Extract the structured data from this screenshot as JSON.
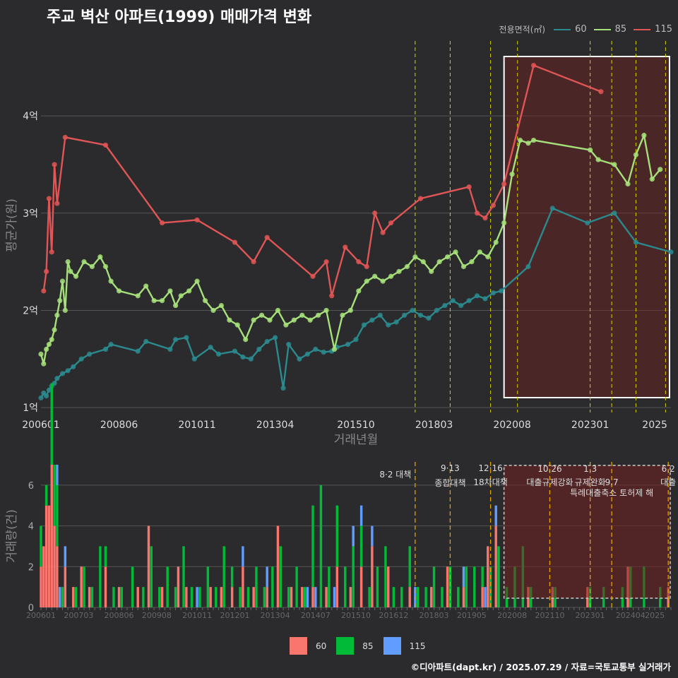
{
  "title": "주교 벽산 아파트(1999) 매매가격 변화",
  "footer": "©디아파트(dapt.kr) / 2025.07.29 / 자료=국토교통부 실거래가",
  "legend_top": {
    "title": "전용면적(㎡)",
    "items": [
      {
        "label": "60",
        "color": "#2a8a8e"
      },
      {
        "label": "85",
        "color": "#a6e07a"
      },
      {
        "label": "115",
        "color": "#e05555"
      }
    ]
  },
  "legend_bottom": {
    "items": [
      {
        "label": "60",
        "color": "#f8766d"
      },
      {
        "label": "85",
        "color": "#00ba38"
      },
      {
        "label": "115",
        "color": "#619cff"
      }
    ]
  },
  "chart_data": [
    {
      "type": "line",
      "title": "",
      "xlabel": "거래년월",
      "ylabel": "평균가(원)",
      "xlim": [
        "200601",
        "202507"
      ],
      "ylim": [
        0.95,
        4.8
      ],
      "x_ticks": [
        "200601",
        "200806",
        "201011",
        "201304",
        "201510",
        "201803",
        "202008",
        "202301",
        "2025"
      ],
      "y_ticks": [
        {
          "value": 1,
          "label": "1억"
        },
        {
          "value": 2,
          "label": "2억"
        },
        {
          "value": 3,
          "label": "3억"
        },
        {
          "value": 4,
          "label": "4억"
        }
      ],
      "grid": true,
      "legend_placement": "top-right",
      "highlight_region": {
        "from": "202005",
        "to": "202507"
      },
      "policy_lines": [
        "201708",
        "201809",
        "201912",
        "202010",
        "202301",
        "202309",
        "202406",
        "202505"
      ],
      "series": [
        {
          "name": "60",
          "color": "#2a8a8e",
          "x": [
            "200601",
            "200602",
            "200603",
            "200604",
            "200605",
            "200606",
            "200607",
            "200609",
            "200611",
            "200701",
            "200704",
            "200707",
            "200801",
            "200803",
            "200901",
            "200904",
            "201001",
            "201003",
            "201007",
            "201010",
            "201104",
            "201107",
            "201201",
            "201204",
            "201207",
            "201210",
            "201301",
            "201304",
            "201307",
            "201309",
            "201401",
            "201404",
            "201407",
            "201410",
            "201501",
            "201503",
            "201507",
            "201510",
            "201601",
            "201604",
            "201607",
            "201610",
            "201701",
            "201704",
            "201707",
            "201710",
            "201801",
            "201804",
            "201807",
            "201810",
            "201901",
            "201904",
            "201907",
            "201910",
            "202001",
            "202004",
            "202102",
            "202111",
            "202212",
            "202310",
            "202406",
            "202507"
          ],
          "y": [
            1.1,
            1.15,
            1.12,
            1.18,
            1.22,
            1.25,
            1.3,
            1.35,
            1.38,
            1.42,
            1.5,
            1.55,
            1.6,
            1.65,
            1.58,
            1.68,
            1.6,
            1.7,
            1.72,
            1.5,
            1.62,
            1.55,
            1.58,
            1.52,
            1.5,
            1.6,
            1.68,
            1.72,
            1.2,
            1.65,
            1.5,
            1.55,
            1.6,
            1.57,
            1.58,
            1.62,
            1.65,
            1.7,
            1.85,
            1.9,
            1.95,
            1.85,
            1.88,
            1.95,
            2.0,
            1.95,
            1.92,
            2.0,
            2.05,
            2.1,
            2.05,
            2.1,
            2.15,
            2.12,
            2.18,
            2.2,
            2.45,
            3.05,
            2.9,
            3.0,
            2.7,
            2.6
          ]
        },
        {
          "name": "85",
          "color": "#a6e07a",
          "x": [
            "200601",
            "200602",
            "200603",
            "200604",
            "200605",
            "200606",
            "200607",
            "200608",
            "200609",
            "200610",
            "200611",
            "200612",
            "200702",
            "200705",
            "200708",
            "200711",
            "200801",
            "200803",
            "200806",
            "200901",
            "200904",
            "200907",
            "200910",
            "201001",
            "201003",
            "201005",
            "201008",
            "201011",
            "201102",
            "201105",
            "201108",
            "201111",
            "201202",
            "201205",
            "201208",
            "201211",
            "201302",
            "201305",
            "201308",
            "201311",
            "201402",
            "201405",
            "201408",
            "201411",
            "201502",
            "201505",
            "201508",
            "201511",
            "201602",
            "201605",
            "201608",
            "201611",
            "201702",
            "201705",
            "201708",
            "201711",
            "201802",
            "201805",
            "201808",
            "201811",
            "201902",
            "201905",
            "201908",
            "201911",
            "202002",
            "202005",
            "202008",
            "202011",
            "202102",
            "202104",
            "202301",
            "202304",
            "202310",
            "202403",
            "202406",
            "202409",
            "202412",
            "202503"
          ],
          "y": [
            1.55,
            1.45,
            1.6,
            1.65,
            1.7,
            1.8,
            1.95,
            2.1,
            2.3,
            2.0,
            2.5,
            2.4,
            2.35,
            2.5,
            2.45,
            2.55,
            2.45,
            2.3,
            2.2,
            2.15,
            2.25,
            2.1,
            2.1,
            2.2,
            2.05,
            2.15,
            2.2,
            2.3,
            2.1,
            2.0,
            2.05,
            1.9,
            1.85,
            1.7,
            1.9,
            1.95,
            1.9,
            2.0,
            1.85,
            1.9,
            1.95,
            1.9,
            1.95,
            2.0,
            1.6,
            1.95,
            2.0,
            2.2,
            2.3,
            2.35,
            2.3,
            2.35,
            2.4,
            2.45,
            2.55,
            2.5,
            2.4,
            2.5,
            2.55,
            2.6,
            2.45,
            2.5,
            2.6,
            2.55,
            2.7,
            2.9,
            3.4,
            3.75,
            3.72,
            3.75,
            3.65,
            3.55,
            3.5,
            3.3,
            3.6,
            3.8,
            3.35,
            3.45
          ]
        },
        {
          "name": "115",
          "color": "#e05555",
          "x": [
            "200602",
            "200603",
            "200604",
            "200605",
            "200606",
            "200607",
            "200610",
            "200801",
            "200910",
            "201011",
            "201201",
            "201208",
            "201301",
            "201406",
            "201411",
            "201501",
            "201506",
            "201511",
            "201602",
            "201605",
            "201608",
            "201611",
            "201710",
            "201904",
            "201907",
            "201910",
            "202001",
            "202005",
            "202104",
            "202305"
          ],
          "y": [
            2.2,
            2.4,
            3.15,
            2.6,
            3.5,
            3.1,
            3.78,
            3.7,
            2.9,
            2.93,
            2.7,
            2.5,
            2.75,
            2.35,
            2.5,
            2.15,
            2.65,
            2.5,
            2.45,
            3.0,
            2.8,
            2.9,
            3.15,
            3.27,
            3.0,
            2.95,
            3.08,
            3.3,
            4.52,
            4.25
          ]
        }
      ]
    },
    {
      "type": "bar",
      "title": "",
      "xlabel": "",
      "ylabel": "거래량(건)",
      "ylim": [
        0,
        7
      ],
      "x_ticks": [
        "200601",
        "200703",
        "200806",
        "200908",
        "201011",
        "201201",
        "201304",
        "201407",
        "201510",
        "201612",
        "201803",
        "201905",
        "202008",
        "202110",
        "202301",
        "202404",
        "2025"
      ],
      "y_ticks": [
        0,
        2,
        4,
        6
      ],
      "grid": true,
      "legend_placement": "bottom",
      "highlight_region": {
        "from": "202005",
        "to": "202507"
      },
      "policy_annotations": [
        {
          "date": "201708",
          "label": "8·2 대책"
        },
        {
          "date": "201809",
          "label": "9·13 종합대책"
        },
        {
          "date": "201912",
          "label": "12·16 18차대책"
        },
        {
          "date": "202110",
          "label": "10.26 대출규제강화"
        },
        {
          "date": "202301",
          "label": "1.3 규제완화"
        },
        {
          "date": "202309",
          "label": "9.7 특례대출축소 토허제 해"
        },
        {
          "date": "202506",
          "label": "6.2 대출"
        }
      ],
      "series": [
        {
          "name": "60",
          "color": "#f8766d",
          "x": [
            "200601",
            "200602",
            "200603",
            "200604",
            "200605",
            "200606",
            "200607",
            "200610",
            "200701",
            "200704",
            "200707",
            "200801",
            "200806",
            "200901",
            "200905",
            "200910",
            "201004",
            "201007",
            "201104",
            "201108",
            "201112",
            "201204",
            "201208",
            "201301",
            "201305",
            "201310",
            "201402",
            "201406",
            "201411",
            "201503",
            "201508",
            "201512",
            "201604",
            "201610",
            "201706",
            "201802",
            "201808",
            "201902",
            "201909",
            "201911",
            "202002",
            "202102",
            "202111",
            "202212",
            "202403",
            "202506"
          ],
          "counts": [
            2,
            3,
            5,
            5,
            7,
            4,
            3,
            2,
            1,
            2,
            1,
            2,
            1,
            1,
            4,
            1,
            2,
            1,
            1,
            1,
            1,
            2,
            1,
            1,
            4,
            1,
            1,
            1,
            1,
            2,
            1,
            2,
            3,
            2,
            1,
            1,
            2,
            1,
            1,
            3,
            4,
            1,
            1,
            1,
            2,
            1
          ]
        },
        {
          "name": "85",
          "color": "#00ba38",
          "x": [
            "200601",
            "200603",
            "200605",
            "200606",
            "200607",
            "200609",
            "200702",
            "200705",
            "200708",
            "200711",
            "200801",
            "200804",
            "200807",
            "200811",
            "200903",
            "200906",
            "200909",
            "200912",
            "201003",
            "201006",
            "201009",
            "201012",
            "201103",
            "201106",
            "201109",
            "201112",
            "201203",
            "201206",
            "201209",
            "201212",
            "201303",
            "201306",
            "201309",
            "201312",
            "201403",
            "201406",
            "201409",
            "201412",
            "201503",
            "201506",
            "201509",
            "201512",
            "201603",
            "201606",
            "201609",
            "201612",
            "201703",
            "201706",
            "201709",
            "201712",
            "201803",
            "201806",
            "201809",
            "201812",
            "201903",
            "201906",
            "201909",
            "201912",
            "202003",
            "202006",
            "202009",
            "202012",
            "202103",
            "202112",
            "202301",
            "202306",
            "202401",
            "202404",
            "202409",
            "202503"
          ],
          "counts": [
            2,
            1,
            4,
            3,
            3,
            1,
            1,
            2,
            1,
            3,
            1,
            1,
            1,
            2,
            1,
            3,
            1,
            2,
            1,
            3,
            1,
            1,
            2,
            1,
            3,
            1,
            1,
            1,
            2,
            1,
            2,
            3,
            1,
            2,
            1,
            4,
            6,
            2,
            3,
            2,
            3,
            2,
            1,
            2,
            3,
            1,
            1,
            2,
            1,
            1,
            2,
            1,
            2,
            1,
            2,
            2,
            1,
            2,
            3,
            1,
            2,
            3,
            1,
            1,
            1,
            1,
            1,
            2,
            2,
            1
          ]
        },
        {
          "name": "115",
          "color": "#619cff",
          "x": [
            "200607",
            "200608",
            "200610",
            "201011",
            "201204",
            "201301",
            "201404",
            "201407",
            "201502",
            "201509",
            "201512",
            "201604",
            "201708",
            "201902",
            "201910",
            "202002"
          ],
          "counts": [
            1,
            1,
            1,
            1,
            1,
            1,
            1,
            1,
            1,
            1,
            1,
            1,
            1,
            1,
            1,
            1
          ]
        }
      ]
    }
  ]
}
